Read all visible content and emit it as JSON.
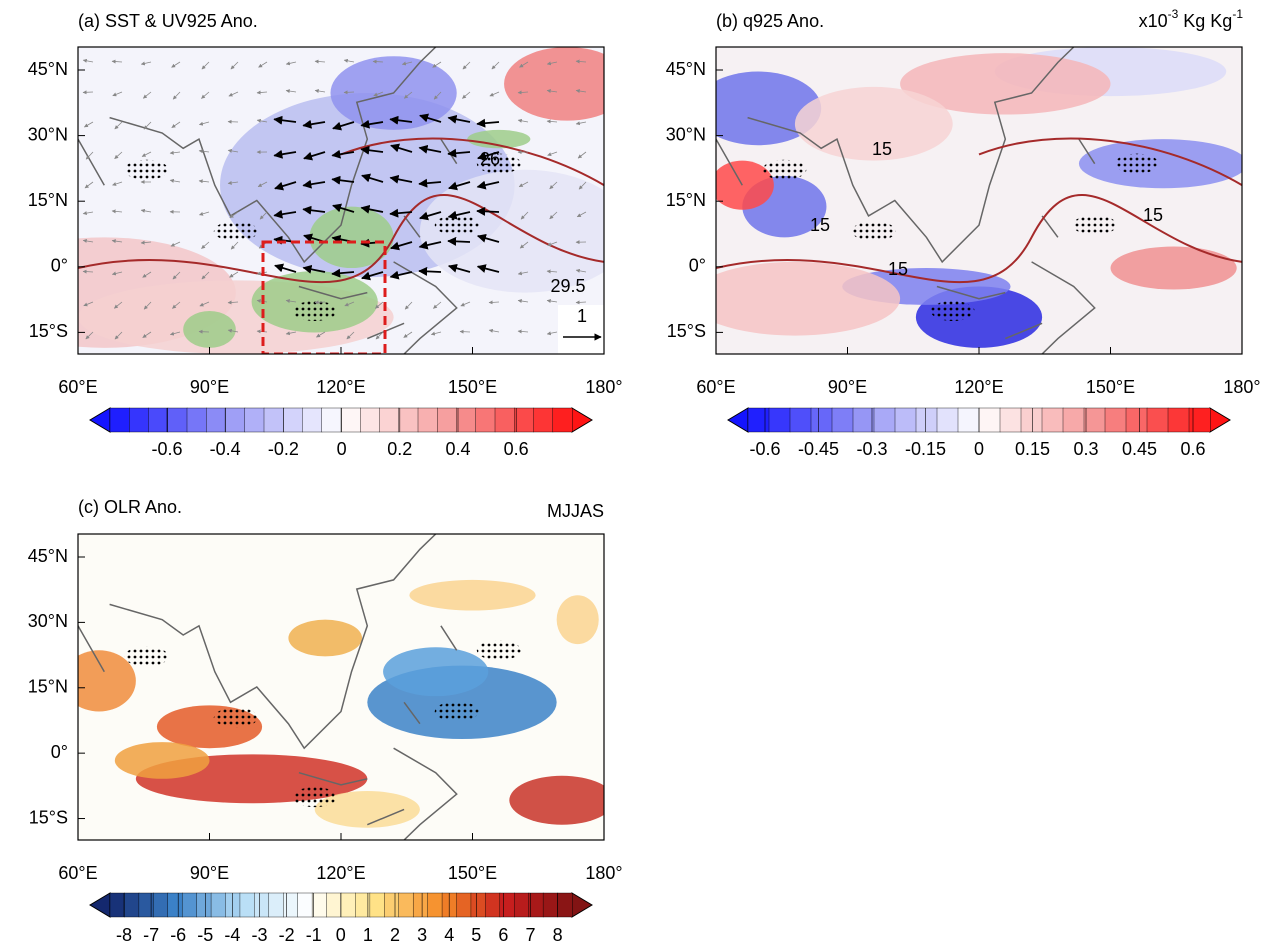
{
  "panels": [
    {
      "title": "(a) SST & UV925 Ano.",
      "lat_labels": [
        "45°N",
        "30°N",
        "15°N",
        "0°",
        "15°S"
      ],
      "lon_labels": [
        "60°E",
        "90°E",
        "120°E",
        "150°E",
        "180°"
      ],
      "colorbar_labels": [
        -0.6,
        -0.4,
        -0.2,
        0,
        0.2,
        0.4,
        0.6
      ],
      "contour_labels": [
        "26",
        "29.5"
      ],
      "reference_vector": "1"
    },
    {
      "title": "(b) q925 Ano.",
      "units": [
        "x10",
        "-3",
        " Kg Kg",
        "-1"
      ],
      "lat_labels": [
        "45°N",
        "30°N",
        "15°N",
        "0°",
        "15°S"
      ],
      "lon_labels": [
        "60°E",
        "90°E",
        "120°E",
        "150°E",
        "180°"
      ],
      "colorbar_labels": [
        -0.6,
        -0.45,
        -0.3,
        -0.15,
        0,
        0.15,
        0.3,
        0.45,
        0.6
      ],
      "contour_labels": [
        "15",
        "15",
        "15",
        "15"
      ]
    },
    {
      "title": "(c) OLR Ano.",
      "season": "MJJAS",
      "lat_labels": [
        "45°N",
        "30°N",
        "15°N",
        "0°",
        "15°S"
      ],
      "lon_labels": [
        "60°E",
        "90°E",
        "120°E",
        "150°E",
        "180°"
      ],
      "colorbar_labels": [
        -8,
        -7,
        -6,
        -5,
        -4,
        -3,
        -2,
        -1,
        0,
        1,
        2,
        3,
        4,
        5,
        6,
        7,
        8
      ]
    }
  ]
}
